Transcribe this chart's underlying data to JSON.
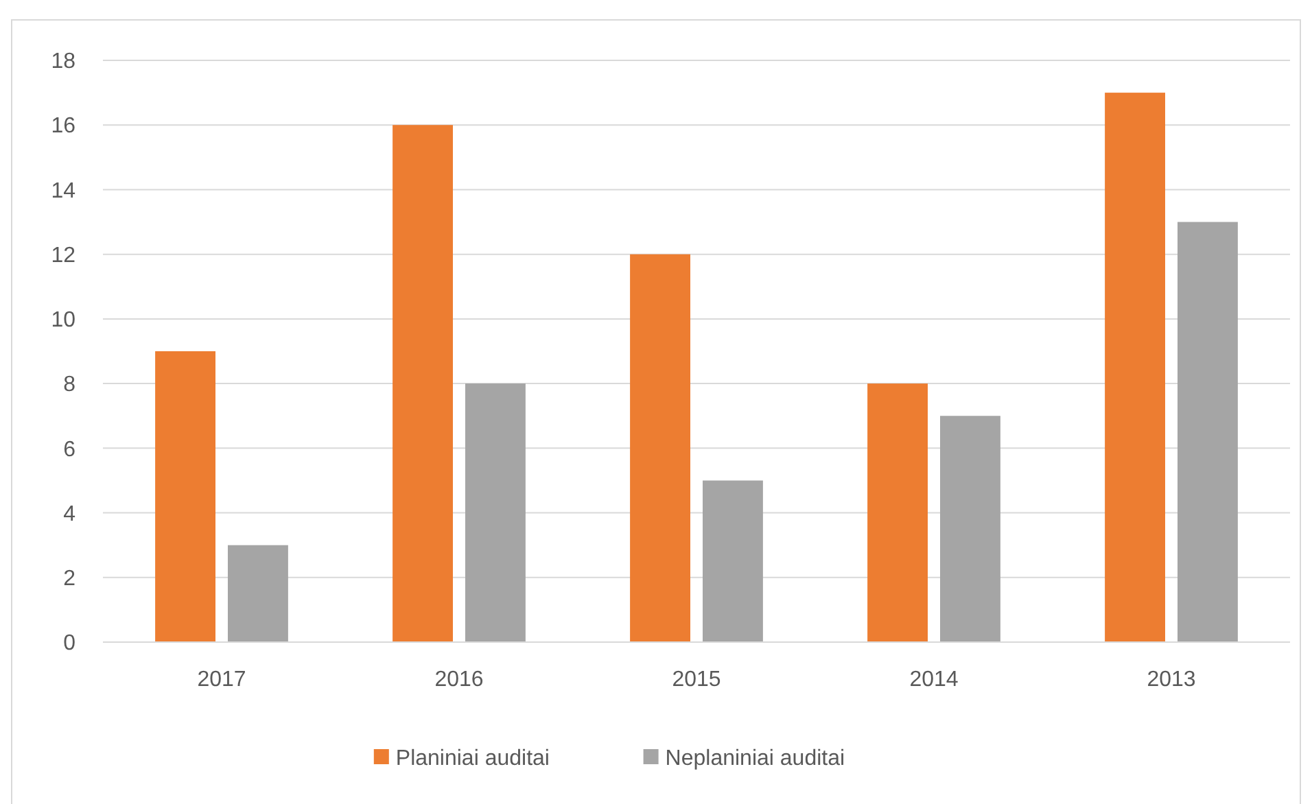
{
  "chart_data": {
    "type": "bar",
    "categories": [
      "2017",
      "2016",
      "2015",
      "2014",
      "2013"
    ],
    "series": [
      {
        "name": "Planiniai auditai",
        "color": "#ed7d31",
        "values": [
          9,
          16,
          12,
          8,
          17
        ]
      },
      {
        "name": "Neplaniniai auditai",
        "color": "#a5a5a5",
        "values": [
          3,
          8,
          5,
          7,
          13
        ]
      }
    ],
    "ylim": [
      0,
      18
    ],
    "yticks": [
      0,
      2,
      4,
      6,
      8,
      10,
      12,
      14,
      16,
      18
    ],
    "grid": "y",
    "legend": "bottom"
  }
}
